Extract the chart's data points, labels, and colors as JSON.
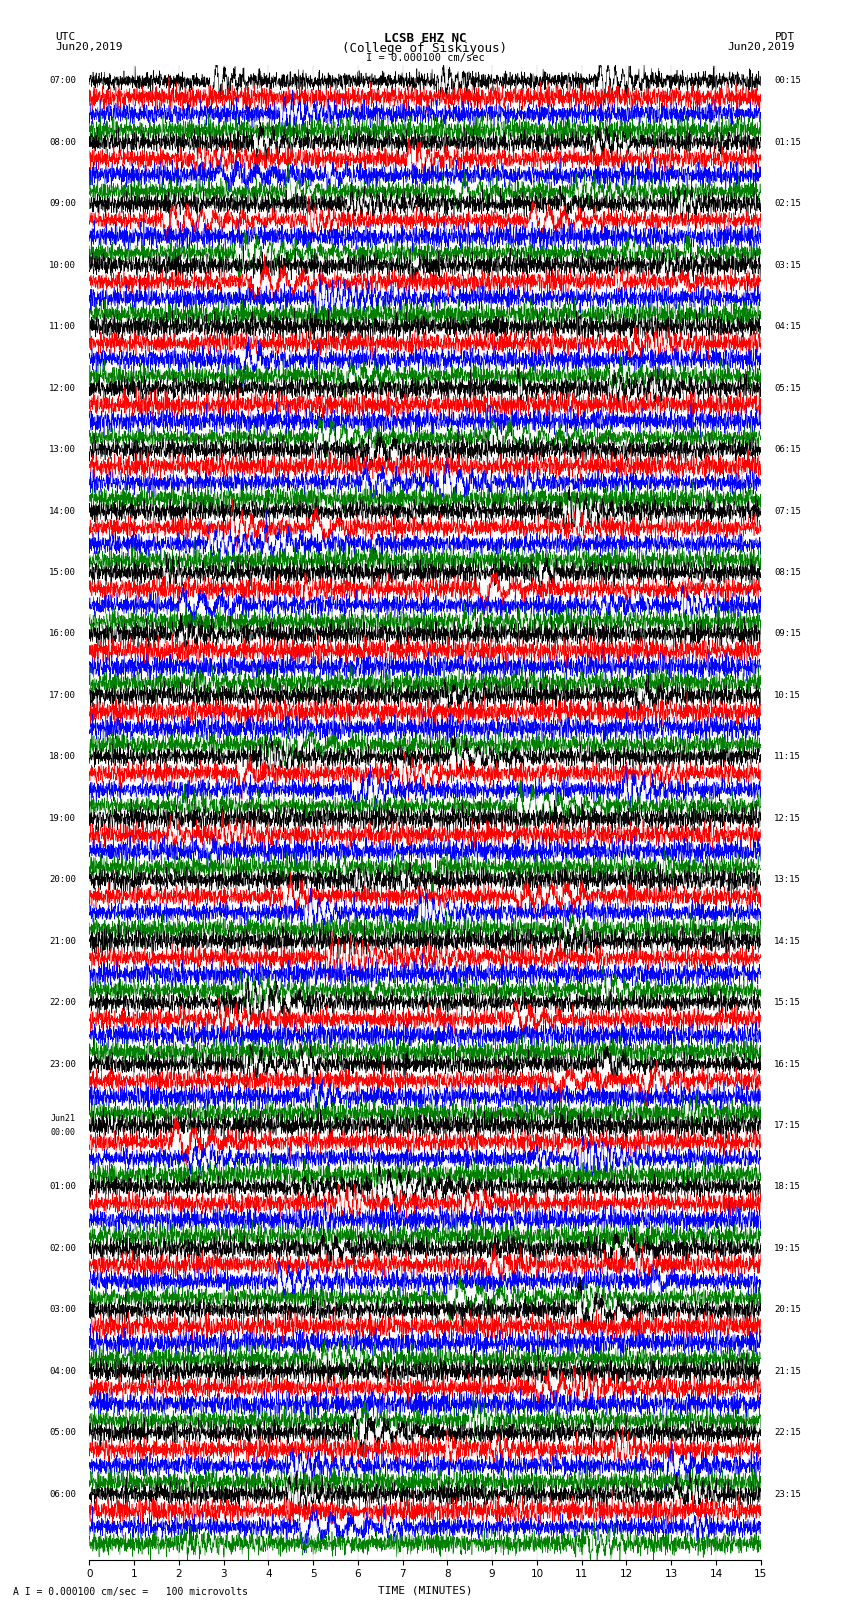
{
  "title_line1": "LCSB EHZ NC",
  "title_line2": "(College of Siskiyous)",
  "scale_label": "I = 0.000100 cm/sec",
  "bottom_label": "A I = 0.000100 cm/sec =   100 microvolts",
  "xlabel": "TIME (MINUTES)",
  "left_header_line1": "UTC",
  "left_header_line2": "Jun20,2019",
  "right_header_line1": "PDT",
  "right_header_line2": "Jun20,2019",
  "total_rows": 96,
  "minutes_per_row": 15,
  "colors": [
    "black",
    "red",
    "blue",
    "green"
  ],
  "fig_width": 8.5,
  "fig_height": 16.13,
  "left_labels_utc": [
    "07:00",
    "",
    "",
    "",
    "08:00",
    "",
    "",
    "",
    "09:00",
    "",
    "",
    "",
    "10:00",
    "",
    "",
    "",
    "11:00",
    "",
    "",
    "",
    "12:00",
    "",
    "",
    "",
    "13:00",
    "",
    "",
    "",
    "14:00",
    "",
    "",
    "",
    "15:00",
    "",
    "",
    "",
    "16:00",
    "",
    "",
    "",
    "17:00",
    "",
    "",
    "",
    "18:00",
    "",
    "",
    "",
    "19:00",
    "",
    "",
    "",
    "20:00",
    "",
    "",
    "",
    "21:00",
    "",
    "",
    "",
    "22:00",
    "",
    "",
    "",
    "23:00",
    "",
    "",
    "",
    "Jun21\n00:00",
    "",
    "",
    "",
    "01:00",
    "",
    "",
    "",
    "02:00",
    "",
    "",
    "",
    "03:00",
    "",
    "",
    "",
    "04:00",
    "",
    "",
    "",
    "05:00",
    "",
    "",
    "",
    "06:00",
    "",
    "",
    ""
  ],
  "right_labels_pdt": [
    "00:15",
    "",
    "",
    "",
    "01:15",
    "",
    "",
    "",
    "02:15",
    "",
    "",
    "",
    "03:15",
    "",
    "",
    "",
    "04:15",
    "",
    "",
    "",
    "05:15",
    "",
    "",
    "",
    "06:15",
    "",
    "",
    "",
    "07:15",
    "",
    "",
    "",
    "08:15",
    "",
    "",
    "",
    "09:15",
    "",
    "",
    "",
    "10:15",
    "",
    "",
    "",
    "11:15",
    "",
    "",
    "",
    "12:15",
    "",
    "",
    "",
    "13:15",
    "",
    "",
    "",
    "14:15",
    "",
    "",
    "",
    "15:15",
    "",
    "",
    "",
    "16:15",
    "",
    "",
    "",
    "17:15",
    "",
    "",
    "",
    "18:15",
    "",
    "",
    "",
    "19:15",
    "",
    "",
    "",
    "20:15",
    "",
    "",
    "",
    "21:15",
    "",
    "",
    "",
    "22:15",
    "",
    "",
    "",
    "23:15",
    "",
    "",
    ""
  ]
}
